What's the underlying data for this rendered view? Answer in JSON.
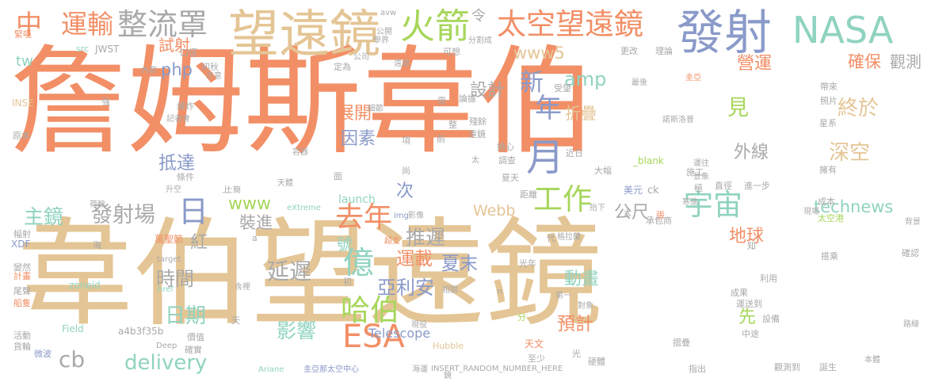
{
  "cloud": {
    "words": [
      {
        "text": "詹姆斯韋伯",
        "color": "#f28f66"
      },
      {
        "text": "韋伯望遠鏡",
        "color": "#e4c595"
      },
      {
        "text": "望遠鏡",
        "color": "#e4c595"
      },
      {
        "text": "發射",
        "color": "#8a9ac9"
      },
      {
        "text": "NASA",
        "color": "#8fd3c0"
      },
      {
        "text": "太空望遠鏡",
        "color": "#f28f66"
      },
      {
        "text": "火箭",
        "color": "#a7d65b"
      },
      {
        "text": "整流罩",
        "color": "#a9a9a9"
      },
      {
        "text": "運輸",
        "color": "#f28f66"
      },
      {
        "text": "中",
        "color": "#f28f66"
      },
      {
        "text": "ESA",
        "color": "#f28f66"
      },
      {
        "text": "月",
        "color": "#8a9ac9"
      },
      {
        "text": "日",
        "color": "#8a9ac9"
      },
      {
        "text": "年",
        "color": "#8a9ac9"
      },
      {
        "text": "工作",
        "color": "#a7d65b"
      },
      {
        "text": "宇宙",
        "color": "#8fd3c0"
      },
      {
        "text": "去年",
        "color": "#f28f66"
      },
      {
        "text": "哈伯",
        "color": "#a7d65b"
      },
      {
        "text": "億",
        "color": "#8fd3c0"
      },
      {
        "text": "新",
        "color": "#8a9ac9"
      },
      {
        "text": "php",
        "color": "#8a9ac9"
      },
      {
        "text": "amp",
        "color": "#8fd3c0"
      },
      {
        "text": "www5",
        "color": "#e4c595"
      },
      {
        "text": "發射場",
        "color": "#a9a9a9"
      },
      {
        "text": "主鏡",
        "color": "#8fd3c0"
      },
      {
        "text": "delivery",
        "color": "#8fd3c0"
      },
      {
        "text": "technews",
        "color": "#8fd3c0"
      },
      {
        "text": "延遲",
        "color": "#a9a9a9"
      },
      {
        "text": "影響",
        "color": "#8fd3c0"
      },
      {
        "text": "推遲",
        "color": "#a9a9a9"
      },
      {
        "text": "夏末",
        "color": "#8a9ac9"
      },
      {
        "text": "亞利安",
        "color": "#8a9ac9"
      },
      {
        "text": "運載",
        "color": "#f28f66"
      },
      {
        "text": "預計",
        "color": "#f28f66"
      },
      {
        "text": "動畫",
        "color": "#8fd3c0"
      },
      {
        "text": "時間",
        "color": "#a9a9a9"
      },
      {
        "text": "日期",
        "color": "#8fd3c0"
      },
      {
        "text": "cb",
        "color": "#a9a9a9"
      },
      {
        "text": "Telescope",
        "color": "#8a9ac9"
      },
      {
        "text": "Webb",
        "color": "#e4c595"
      },
      {
        "text": "launch",
        "color": "#8fd3c0"
      },
      {
        "text": "www",
        "color": "#a7d65b"
      },
      {
        "text": "公尺",
        "color": "#a9a9a9"
      },
      {
        "text": "地球",
        "color": "#f28f66"
      },
      {
        "text": "深空",
        "color": "#e4c595"
      },
      {
        "text": "終於",
        "color": "#e4c595"
      },
      {
        "text": "觀測",
        "color": "#a9a9a9"
      },
      {
        "text": "營運",
        "color": "#f28f66"
      },
      {
        "text": "確保",
        "color": "#f28f66"
      },
      {
        "text": "見",
        "color": "#a7d65b"
      },
      {
        "text": "外線",
        "color": "#a9a9a9"
      },
      {
        "text": "設計",
        "color": "#a9a9a9"
      },
      {
        "text": "展開",
        "color": "#f28f66"
      },
      {
        "text": "折疊",
        "color": "#e4c595"
      },
      {
        "text": "因素",
        "color": "#8a9ac9"
      },
      {
        "text": "抵達",
        "color": "#8a9ac9"
      },
      {
        "text": "裝進",
        "color": "#a9a9a9"
      },
      {
        "text": "號",
        "color": "#8fd3c0"
      },
      {
        "text": "次",
        "color": "#8a9ac9"
      },
      {
        "text": "紅",
        "color": "#a9a9a9"
      },
      {
        "text": "先",
        "color": "#a7d65b"
      },
      {
        "text": "令",
        "color": "#a9a9a9"
      },
      {
        "text": "tw",
        "color": "#8fd3c0"
      },
      {
        "text": "試射",
        "color": "#f28f66"
      },
      {
        "text": "INSERT_RANDOM_NUMBER_HERE",
        "color": "#a9a9a9"
      },
      {
        "text": "圭亞那太空中心",
        "color": "#8a9ac9"
      },
      {
        "text": "Ariane",
        "color": "#8fd3c0"
      },
      {
        "text": "Hubble",
        "color": "#e4c595"
      },
      {
        "text": "eXtreme",
        "color": "#8fd3c0"
      },
      {
        "text": "a4b3f35b",
        "color": "#a9a9a9"
      },
      {
        "text": "zoneid",
        "color": "#8fd3c0"
      },
      {
        "text": "XDF",
        "color": "#8a9ac9"
      },
      {
        "text": "Field",
        "color": "#8fd3c0"
      },
      {
        "text": "Deep",
        "color": "#a9a9a9"
      },
      {
        "text": "href",
        "color": "#8fd3c0"
      },
      {
        "text": "target",
        "color": "#a9a9a9"
      },
      {
        "text": "_blank",
        "color": "#a7d65b"
      },
      {
        "text": "JWST",
        "color": "#a9a9a9"
      },
      {
        "text": "src",
        "color": "#8fd3c0"
      },
      {
        "text": "avw",
        "color": "#a9a9a9"
      },
      {
        "text": "INSE",
        "color": "#e4c595"
      },
      {
        "text": "img",
        "color": "#8a9ac9"
      },
      {
        "text": "ck",
        "color": "#a9a9a9"
      },
      {
        "text": "美元",
        "color": "#8a9ac9"
      },
      {
        "text": "天文",
        "color": "#f28f66"
      },
      {
        "text": "諾斯洛普",
        "color": "#a9a9a9"
      },
      {
        "text": "萬聖節",
        "color": "#f28f66"
      },
      {
        "text": "緊嘆",
        "color": "#f28f66"
      },
      {
        "text": "計畫",
        "color": "#f28f66"
      },
      {
        "text": "船隻",
        "color": "#f28f66"
      },
      {
        "text": "貨輪",
        "color": "#a9a9a9"
      },
      {
        "text": "微波",
        "color": "#8a9ac9"
      },
      {
        "text": "觀測到",
        "color": "#a9a9a9"
      },
      {
        "text": "誕生",
        "color": "#a9a9a9"
      },
      {
        "text": "指出",
        "color": "#a9a9a9"
      },
      {
        "text": "成本",
        "color": "#a9a9a9"
      },
      {
        "text": "太空港",
        "color": "#a7d65b"
      },
      {
        "text": "承包商",
        "color": "#a9a9a9"
      },
      {
        "text": "搭乘",
        "color": "#a9a9a9"
      },
      {
        "text": "確認",
        "color": "#a9a9a9"
      },
      {
        "text": "運送到",
        "color": "#a9a9a9"
      },
      {
        "text": "設備",
        "color": "#a9a9a9"
      },
      {
        "text": "中途",
        "color": "#a9a9a9"
      },
      {
        "text": "至少",
        "color": "#a9a9a9"
      },
      {
        "text": "現役",
        "color": "#a9a9a9"
      },
      {
        "text": "相關",
        "color": "#a9a9a9"
      },
      {
        "text": "光年",
        "color": "#a9a9a9"
      },
      {
        "text": "超支",
        "color": "#f28f66"
      },
      {
        "text": "遠處",
        "color": "#a9a9a9"
      },
      {
        "text": "分割成",
        "color": "#a9a9a9"
      },
      {
        "text": "學界",
        "color": "#a9a9a9"
      },
      {
        "text": "公開",
        "color": "#a9a9a9"
      },
      {
        "text": "細節",
        "color": "#a9a9a9"
      },
      {
        "text": "定為",
        "color": "#a9a9a9"
      },
      {
        "text": "初秋",
        "color": "#a9a9a9"
      },
      {
        "text": "口徑",
        "color": "#a9a9a9"
      },
      {
        "text": "內容",
        "color": "#a9a9a9"
      },
      {
        "text": "示意",
        "color": "#a9a9a9"
      },
      {
        "text": "爆炸",
        "color": "#a9a9a9"
      },
      {
        "text": "記者會",
        "color": "#a9a9a9"
      },
      {
        "text": "條件",
        "color": "#a9a9a9"
      },
      {
        "text": "升空",
        "color": "#a9a9a9"
      },
      {
        "text": "價值",
        "color": "#a9a9a9"
      },
      {
        "text": "確實",
        "color": "#a9a9a9"
      },
      {
        "text": "星系",
        "color": "#a9a9a9"
      },
      {
        "text": "擁有",
        "color": "#a9a9a9"
      },
      {
        "text": "施工",
        "color": "#a9a9a9"
      },
      {
        "text": "直徑",
        "color": "#a9a9a9"
      },
      {
        "text": "進一步",
        "color": "#a9a9a9"
      },
      {
        "text": "距離",
        "color": "#a9a9a9"
      },
      {
        "text": "大幅",
        "color": "#a9a9a9"
      },
      {
        "text": "夏天",
        "color": "#a9a9a9"
      },
      {
        "text": "調查",
        "color": "#a9a9a9"
      },
      {
        "text": "近日",
        "color": "#a9a9a9"
      },
      {
        "text": "擔心",
        "color": "#a9a9a9"
      },
      {
        "text": "受望",
        "color": "#a9a9a9"
      },
      {
        "text": "帶來",
        "color": "#a9a9a9"
      },
      {
        "text": "照片",
        "color": "#a9a9a9"
      },
      {
        "text": "更改",
        "color": "#a9a9a9"
      },
      {
        "text": "理論",
        "color": "#a9a9a9"
      },
      {
        "text": "可想",
        "color": "#a9a9a9"
      },
      {
        "text": "論據",
        "color": "#a9a9a9"
      },
      {
        "text": "殘餘",
        "color": "#a9a9a9"
      },
      {
        "text": "遠鏡",
        "color": "#a9a9a9"
      },
      {
        "text": "最後",
        "color": "#a9a9a9"
      },
      {
        "text": "第一",
        "color": "#a9a9a9"
      },
      {
        "text": "對象",
        "color": "#a9a9a9"
      },
      {
        "text": "成果",
        "color": "#a9a9a9"
      },
      {
        "text": "利用",
        "color": "#a9a9a9"
      },
      {
        "text": "寒進",
        "color": "#a9a9a9"
      },
      {
        "text": "現場",
        "color": "#a9a9a9"
      },
      {
        "text": "背景",
        "color": "#a9a9a9"
      },
      {
        "text": "路線",
        "color": "#a9a9a9"
      },
      {
        "text": "本體",
        "color": "#a9a9a9"
      },
      {
        "text": "硬體",
        "color": "#a9a9a9"
      },
      {
        "text": "摺疊",
        "color": "#a9a9a9"
      },
      {
        "text": "海運",
        "color": "#a9a9a9"
      },
      {
        "text": "天體",
        "color": "#a9a9a9"
      },
      {
        "text": "抬下",
        "color": "#a9a9a9"
      },
      {
        "text": "運往",
        "color": "#a9a9a9"
      },
      {
        "text": "景象",
        "color": "#a9a9a9"
      },
      {
        "text": "含裡",
        "color": "#a9a9a9"
      },
      {
        "text": "容器",
        "color": "#a9a9a9"
      },
      {
        "text": "項",
        "color": "#a9a9a9"
      },
      {
        "text": "前",
        "color": "#a9a9a9"
      },
      {
        "text": "尚",
        "color": "#a9a9a9"
      },
      {
        "text": "需",
        "color": "#a9a9a9"
      },
      {
        "text": "整",
        "color": "#a9a9a9"
      },
      {
        "text": "極",
        "color": "#a9a9a9"
      },
      {
        "text": "分",
        "color": "#a7d65b"
      },
      {
        "text": "光",
        "color": "#a9a9a9"
      },
      {
        "text": "天",
        "color": "#a9a9a9"
      },
      {
        "text": "海",
        "color": "#a9a9a9"
      },
      {
        "text": "面",
        "color": "#a9a9a9"
      },
      {
        "text": "知",
        "color": "#a9a9a9"
      },
      {
        "text": "強",
        "color": "#a9a9a9"
      },
      {
        "text": "張",
        "color": "#f28f66"
      },
      {
        "text": "代",
        "color": "#a9a9a9"
      },
      {
        "text": "格拉蘭",
        "color": "#a9a9a9"
      },
      {
        "text": "a",
        "color": "#a9a9a9"
      },
      {
        "text": "n",
        "color": "#a9a9a9"
      },
      {
        "text": "初",
        "color": "#a9a9a9"
      },
      {
        "text": "上",
        "color": "#a9a9a9"
      },
      {
        "text": "公司",
        "color": "#a9a9a9"
      },
      {
        "text": "大",
        "color": "#a9a9a9"
      },
      {
        "text": "太",
        "color": "#a9a9a9"
      },
      {
        "text": "原本",
        "color": "#a9a9a9"
      },
      {
        "text": "活動",
        "color": "#a9a9a9"
      },
      {
        "text": "圭亞",
        "color": "#f28f66"
      },
      {
        "text": "變然",
        "color": "#a9a9a9"
      },
      {
        "text": "尾聲",
        "color": "#a9a9a9"
      },
      {
        "text": "幅射",
        "color": "#a9a9a9"
      },
      {
        "text": "荷輸",
        "color": "#a9a9a9"
      },
      {
        "text": "上簡",
        "color": "#a9a9a9"
      },
      {
        "text": "影像",
        "color": "#a9a9a9"
      },
      {
        "text": "鏡",
        "color": "#a9a9a9"
      }
    ]
  }
}
